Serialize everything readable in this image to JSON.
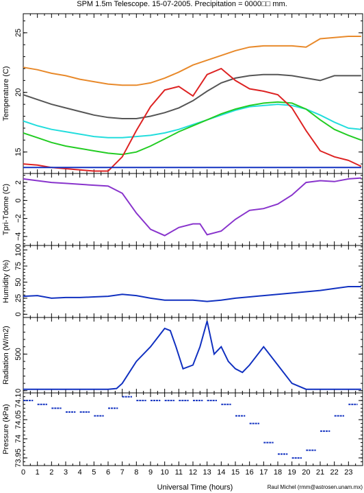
{
  "chart_data": [
    {
      "type": "line",
      "panel": "temperature",
      "title": "SPM 1.5m Telescope. 15-07-2005. Precipitation = 0000□□ mm.",
      "ylabel": "Temperature (C)",
      "ylim": [
        13.2,
        26.6
      ],
      "yticks": [
        "15",
        "20",
        "25"
      ],
      "x": [
        0,
        1,
        2,
        3,
        4,
        5,
        6,
        7,
        8,
        9,
        10,
        11,
        12,
        13,
        14,
        15,
        16,
        17,
        18,
        19,
        20,
        21,
        22,
        23,
        23.9
      ],
      "series": [
        {
          "color": "#e8892a",
          "values": [
            22.1,
            21.9,
            21.6,
            21.4,
            21.1,
            20.9,
            20.7,
            20.6,
            20.6,
            20.8,
            21.2,
            21.7,
            22.3,
            22.7,
            23.1,
            23.5,
            23.8,
            23.9,
            23.9,
            23.9,
            23.8,
            24.5,
            24.6,
            24.7,
            24.7
          ]
        },
        {
          "color": "#555555",
          "values": [
            19.8,
            19.4,
            19.0,
            18.7,
            18.4,
            18.1,
            17.9,
            17.8,
            17.8,
            18.0,
            18.3,
            18.7,
            19.3,
            20.1,
            20.8,
            21.2,
            21.4,
            21.5,
            21.5,
            21.4,
            21.2,
            21.0,
            21.4,
            21.4,
            21.4
          ]
        },
        {
          "color": "#22dddd",
          "values": [
            17.6,
            17.2,
            16.9,
            16.7,
            16.5,
            16.3,
            16.2,
            16.2,
            16.3,
            16.4,
            16.6,
            16.9,
            17.3,
            17.7,
            18.1,
            18.5,
            18.8,
            18.9,
            19.0,
            18.9,
            18.6,
            18.1,
            17.5,
            17.0,
            16.9
          ]
        },
        {
          "color": "#22cc22",
          "values": [
            16.6,
            16.2,
            15.8,
            15.5,
            15.3,
            15.1,
            14.9,
            14.8,
            15.0,
            15.5,
            16.1,
            16.7,
            17.2,
            17.7,
            18.2,
            18.6,
            18.9,
            19.1,
            19.2,
            19.1,
            18.6,
            17.7,
            16.9,
            16.4,
            16.0
          ]
        },
        {
          "color": "#dd2222",
          "values": [
            14.0,
            13.9,
            13.7,
            13.6,
            13.5,
            13.4,
            13.4,
            14.6,
            16.8,
            18.8,
            20.2,
            20.5,
            19.7,
            21.5,
            22.0,
            21.0,
            20.3,
            20.1,
            19.8,
            18.7,
            16.8,
            15.1,
            14.6,
            14.3,
            13.8
          ]
        },
        {
          "color": "#1030c0",
          "values": [
            13.7,
            13.7,
            13.7,
            13.7,
            13.7,
            13.7,
            13.7,
            13.7,
            13.7,
            13.7,
            13.7,
            13.7,
            13.7,
            13.7,
            13.7,
            13.7,
            13.7,
            13.7,
            13.7,
            13.7,
            13.7,
            13.7,
            13.7,
            13.7,
            13.7
          ]
        }
      ]
    },
    {
      "type": "line",
      "panel": "tdiff",
      "ylabel": "Tpri-Tdome (C)",
      "ylim": [
        -5.0,
        3.0
      ],
      "yticks": [
        "−4",
        "−2",
        "0",
        "2"
      ],
      "x": [
        0,
        1,
        2,
        3,
        4,
        5,
        6,
        7,
        8,
        9,
        10,
        11,
        12,
        12.5,
        13,
        14,
        15,
        16,
        17,
        18,
        19,
        20,
        21,
        22,
        23,
        23.9
      ],
      "series": [
        {
          "color": "#8833cc",
          "values": [
            2.4,
            2.2,
            2.0,
            1.9,
            1.8,
            1.7,
            1.6,
            0.8,
            -1.4,
            -3.2,
            -3.9,
            -3.0,
            -2.6,
            -2.6,
            -3.8,
            -3.4,
            -2.1,
            -1.1,
            -0.9,
            -0.4,
            0.6,
            2.0,
            2.2,
            2.1,
            2.4,
            2.5
          ]
        }
      ]
    },
    {
      "type": "line",
      "panel": "humidity",
      "ylabel": "Humidity (%)",
      "ylim": [
        -5,
        107
      ],
      "yticks": [
        "0",
        "25",
        "50",
        "75",
        "100"
      ],
      "x": [
        0,
        1,
        2,
        3,
        4,
        5,
        6,
        7,
        8,
        9,
        10,
        11,
        12,
        13,
        14,
        15,
        16,
        17,
        18,
        19,
        20,
        21,
        22,
        23,
        23.9
      ],
      "series": [
        {
          "color": "#1030c0",
          "values": [
            28,
            29,
            25,
            26,
            26,
            27,
            28,
            31,
            29,
            25,
            22,
            22,
            22,
            20,
            22,
            25,
            27,
            29,
            31,
            33,
            35,
            37,
            40,
            43,
            43
          ]
        }
      ]
    },
    {
      "type": "line",
      "panel": "radiation",
      "ylabel": "Radiation (W/m2)",
      "ylim": [
        -30,
        1000
      ],
      "yticks": [
        "0",
        "500"
      ],
      "x": [
        0,
        1,
        2,
        3,
        4,
        5,
        6,
        6.6,
        7,
        7.5,
        8,
        9,
        10,
        10.4,
        10.8,
        11.3,
        12,
        12.5,
        13,
        13.5,
        14,
        14.5,
        15,
        15.5,
        16,
        17,
        18,
        19,
        20,
        21,
        22,
        23,
        23.9
      ],
      "series": [
        {
          "color": "#1030c0",
          "values": [
            20,
            20,
            20,
            20,
            20,
            20,
            20,
            30,
            100,
            250,
            400,
            600,
            850,
            820,
            600,
            300,
            350,
            600,
            950,
            500,
            600,
            400,
            300,
            250,
            350,
            600,
            350,
            100,
            20,
            20,
            20,
            20,
            20
          ]
        }
      ]
    },
    {
      "type": "scatter",
      "panel": "pressure",
      "ylabel": "Pressure (kPa)",
      "ylim": [
        73.93,
        74.12
      ],
      "yticks": [
        "73.95",
        "74",
        "74.05",
        "74.1"
      ],
      "xlabel": "Universal Time (hours)",
      "xticks": [
        "0",
        "1",
        "2",
        "3",
        "4",
        "5",
        "6",
        "7",
        "8",
        "9",
        "10",
        "11",
        "12",
        "13",
        "14",
        "15",
        "16",
        "17",
        "18",
        "19",
        "20",
        "21",
        "22",
        "23"
      ],
      "x": [
        0,
        1,
        2,
        3,
        4,
        5,
        6,
        7,
        8,
        9,
        10,
        11,
        12,
        13,
        14,
        15,
        16,
        17,
        18,
        19,
        20,
        21,
        22,
        23,
        23.9
      ],
      "series": [
        {
          "color": "#1030c0",
          "values": [
            74.1,
            74.09,
            74.08,
            74.07,
            74.07,
            74.06,
            74.08,
            74.11,
            74.1,
            74.1,
            74.1,
            74.1,
            74.1,
            74.1,
            74.09,
            74.06,
            74.04,
            73.99,
            73.96,
            73.95,
            73.97,
            74.02,
            74.06,
            74.09,
            74.1
          ]
        }
      ]
    }
  ],
  "credit": "Raul Michel (rmm@astrosen.unam.mx)"
}
